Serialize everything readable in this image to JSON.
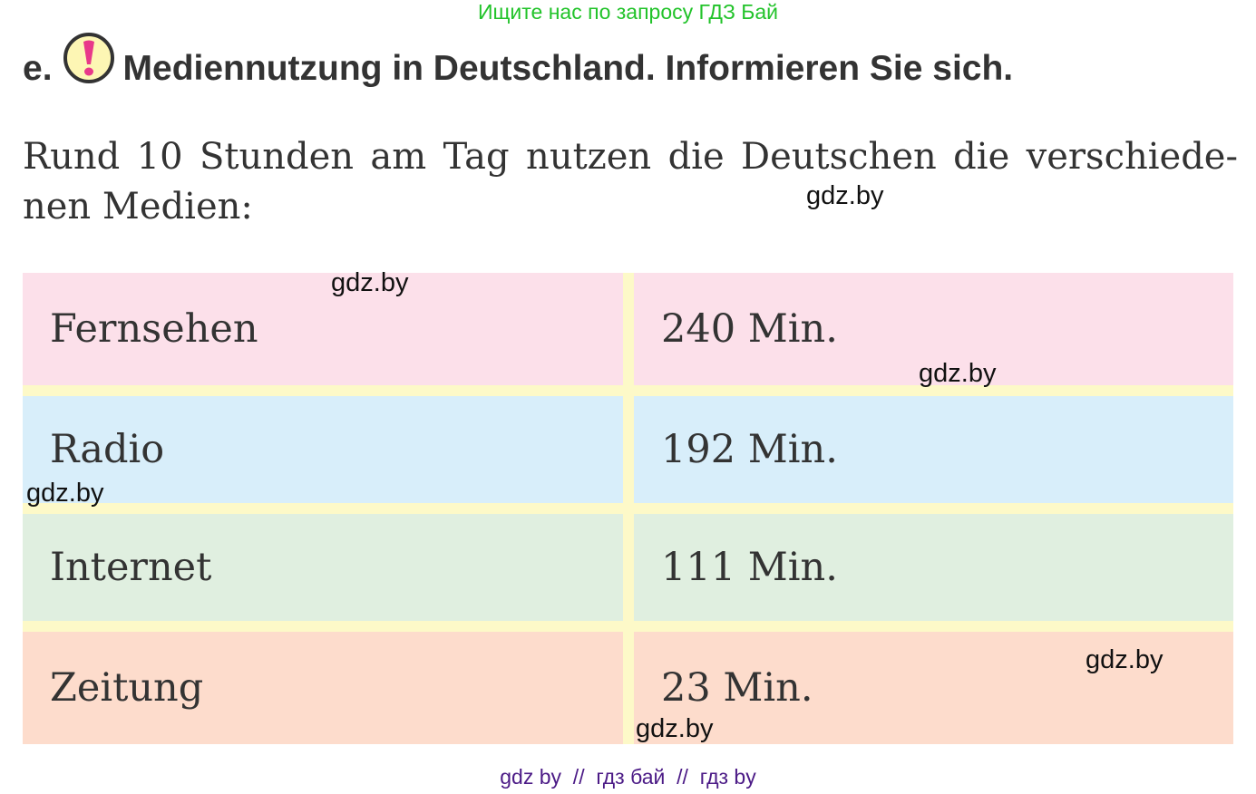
{
  "top_note": "Ищите нас по запросу ГДЗ Бай",
  "heading": {
    "marker": "e.",
    "icon": "exclamation-icon",
    "title": "Mediennutzung in Deutschland. Informieren Sie sich."
  },
  "intro": "Rund 10 Stunden am Tag nutzen die Deutschen die verschiede-nen Medien:",
  "table": {
    "rows": [
      {
        "medium": "Fernsehen",
        "time": "240 Min.",
        "color": "#fce0ea"
      },
      {
        "medium": "Radio",
        "time": "192 Min.",
        "color": "#d8eefa"
      },
      {
        "medium": "Internet",
        "time": "111 Min.",
        "color": "#e0efe0"
      },
      {
        "medium": "Zeitung",
        "time": "23 Min.",
        "color": "#fddccc"
      }
    ]
  },
  "watermark": "gdz.by",
  "footer": "gdz by  //  гдз бай  //  гдз by"
}
